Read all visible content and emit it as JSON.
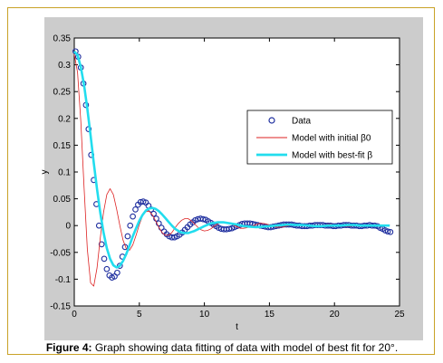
{
  "caption": {
    "label": "Figure 4:",
    "text": " Graph showing data fitting of data with model of best fit for 20°."
  },
  "chart_data": {
    "type": "line",
    "xlabel": "t",
    "ylabel": "y",
    "xlim": [
      0,
      25
    ],
    "ylim": [
      -0.15,
      0.35
    ],
    "xticks": [
      "0",
      "5",
      "10",
      "15",
      "20",
      "25"
    ],
    "yticks": [
      "-0.15",
      "-0.1",
      "-0.05",
      "0",
      "0.05",
      "0.1",
      "0.15",
      "0.2",
      "0.25",
      "0.3",
      "0.35"
    ],
    "legend_position": "center-right",
    "grid": false,
    "series": [
      {
        "name": "Data",
        "style": "markers",
        "color": "#1f2f9f",
        "x": [
          0.1,
          0.3,
          0.5,
          0.7,
          0.9,
          1.1,
          1.3,
          1.5,
          1.7,
          1.9,
          2.1,
          2.3,
          2.5,
          2.7,
          2.9,
          3.1,
          3.3,
          3.5,
          3.7,
          3.9,
          4.1,
          4.3,
          4.5,
          4.7,
          4.9,
          5.1,
          5.3,
          5.5,
          5.7,
          5.9,
          6.1,
          6.3,
          6.5,
          6.7,
          6.9,
          7.1,
          7.3,
          7.5,
          7.7,
          7.9,
          8.1,
          8.3,
          8.5,
          8.7,
          8.9,
          9.1,
          9.3,
          9.5,
          9.7,
          9.9,
          10.1,
          10.3,
          10.5,
          10.7,
          10.9,
          11.1,
          11.3,
          11.5,
          11.7,
          11.9,
          12.1,
          12.3,
          12.5,
          12.7,
          12.9,
          13.1,
          13.3,
          13.5,
          13.7,
          13.9,
          14.1,
          14.3,
          14.5,
          14.7,
          14.9,
          15.1,
          15.3,
          15.5,
          15.7,
          15.9,
          16.1,
          16.3,
          16.5,
          16.7,
          16.9,
          17.1,
          17.3,
          17.5,
          17.7,
          17.9,
          18.1,
          18.3,
          18.5,
          18.7,
          18.9,
          19.1,
          19.3,
          19.5,
          19.7,
          19.9,
          20.1,
          20.3,
          20.5,
          20.7,
          20.9,
          21.1,
          21.3,
          21.5,
          21.7,
          21.9,
          22.1,
          22.3,
          22.5,
          22.7,
          22.9,
          23.1,
          23.3,
          23.5,
          23.7,
          23.9,
          24.1,
          24.3
        ],
        "y": [
          0.325,
          0.315,
          0.295,
          0.265,
          0.225,
          0.18,
          0.132,
          0.085,
          0.04,
          0.0,
          -0.035,
          -0.062,
          -0.081,
          -0.093,
          -0.097,
          -0.095,
          -0.088,
          -0.075,
          -0.058,
          -0.04,
          -0.02,
          0.0,
          0.017,
          0.03,
          0.039,
          0.044,
          0.045,
          0.043,
          0.037,
          0.03,
          0.022,
          0.013,
          0.004,
          -0.004,
          -0.011,
          -0.016,
          -0.02,
          -0.022,
          -0.022,
          -0.02,
          -0.017,
          -0.013,
          -0.008,
          -0.003,
          0.002,
          0.006,
          0.01,
          0.012,
          0.013,
          0.012,
          0.011,
          0.008,
          0.005,
          0.002,
          -0.001,
          -0.004,
          -0.006,
          -0.007,
          -0.007,
          -0.006,
          -0.005,
          -0.003,
          -0.001,
          0.001,
          0.003,
          0.004,
          0.004,
          0.004,
          0.003,
          0.002,
          0.001,
          0.0,
          -0.001,
          -0.002,
          -0.003,
          -0.003,
          -0.002,
          -0.001,
          0.0,
          0.001,
          0.002,
          0.002,
          0.002,
          0.002,
          0.001,
          0.0,
          0.0,
          -0.001,
          -0.001,
          -0.001,
          0.0,
          0.0,
          0.001,
          0.001,
          0.001,
          0.001,
          0.0,
          0.0,
          0.0,
          -0.001,
          -0.001,
          0.0,
          0.0,
          0.001,
          0.001,
          0.001,
          0.0,
          0.0,
          0.0,
          -0.001,
          -0.001,
          0.0,
          0.0,
          0.001,
          0.0,
          0.0,
          -0.001,
          -0.004,
          -0.006,
          -0.009,
          -0.011,
          -0.012
        ]
      },
      {
        "name": "Model with initial β0",
        "style": "line",
        "color": "#dd2222",
        "x": [
          0.0,
          0.25,
          0.5,
          0.75,
          1.0,
          1.25,
          1.5,
          1.75,
          2.0,
          2.25,
          2.5,
          2.75,
          3.0,
          3.25,
          3.5,
          3.75,
          4.0,
          4.25,
          4.5,
          4.75,
          5.0,
          5.25,
          5.5,
          5.75,
          6.0,
          6.25,
          6.5,
          6.75,
          7.0,
          7.25,
          7.5,
          7.75,
          8.0,
          8.25,
          8.5,
          8.75,
          9.0,
          9.25,
          9.5,
          9.75,
          10.0,
          10.25,
          10.5,
          10.75,
          11.0,
          11.25,
          11.5,
          11.75,
          12.0,
          12.25,
          12.5,
          12.75,
          13.0,
          13.25,
          13.5,
          13.75,
          14.0,
          14.25,
          14.5,
          14.75,
          15.0,
          15.25,
          15.5,
          15.75,
          16.0,
          16.25,
          16.5,
          16.75,
          17.0,
          17.25,
          17.5,
          17.75,
          18.0,
          18.25,
          18.5,
          18.75,
          19.0,
          19.25,
          19.5,
          19.75,
          20.0,
          20.25,
          20.5,
          20.75,
          21.0,
          21.25,
          21.5,
          21.75,
          22.0,
          22.25,
          22.5,
          22.75,
          23.0,
          23.25,
          23.5,
          23.75,
          24.0,
          24.25
        ],
        "y": [
          0.32,
          0.286,
          0.195,
          0.071,
          -0.044,
          -0.107,
          -0.113,
          -0.079,
          -0.023,
          0.025,
          0.058,
          0.069,
          0.058,
          0.031,
          0.0,
          -0.027,
          -0.043,
          -0.046,
          -0.036,
          -0.018,
          0.002,
          0.018,
          0.026,
          0.027,
          0.02,
          0.009,
          -0.003,
          -0.013,
          -0.018,
          -0.018,
          -0.013,
          -0.004,
          0.004,
          0.01,
          0.013,
          0.013,
          0.009,
          0.003,
          -0.003,
          -0.008,
          -0.01,
          -0.009,
          -0.006,
          -0.001,
          0.003,
          0.006,
          0.007,
          0.006,
          0.004,
          0.001,
          -0.002,
          -0.005,
          -0.005,
          -0.004,
          -0.002,
          0.0,
          0.002,
          0.004,
          0.004,
          0.003,
          0.001,
          -0.001,
          -0.003,
          -0.003,
          -0.003,
          -0.001,
          0.0,
          0.002,
          0.002,
          0.002,
          0.001,
          0.0,
          -0.001,
          -0.002,
          -0.002,
          -0.001,
          0.0,
          0.001,
          0.002,
          0.002,
          0.001,
          0.0,
          -0.001,
          -0.001,
          -0.001,
          -0.001,
          0.0,
          0.001,
          0.001,
          0.001,
          0.001,
          0.0,
          0.0,
          -0.001,
          -0.001,
          0.0,
          0.0,
          0.001
        ]
      },
      {
        "name": "Model with best-fit β",
        "style": "line",
        "color": "#22ddee",
        "x": [
          0.0,
          0.25,
          0.5,
          0.75,
          1.0,
          1.25,
          1.5,
          1.75,
          2.0,
          2.25,
          2.5,
          2.75,
          3.0,
          3.25,
          3.5,
          3.75,
          4.0,
          4.25,
          4.5,
          4.75,
          5.0,
          5.25,
          5.5,
          5.75,
          6.0,
          6.25,
          6.5,
          6.75,
          7.0,
          7.25,
          7.5,
          7.75,
          8.0,
          8.25,
          8.5,
          8.75,
          9.0,
          9.25,
          9.5,
          9.75,
          10.0,
          10.5,
          11.0,
          11.5,
          12.0,
          12.5,
          13.0,
          13.5,
          14.0,
          14.5,
          15.0,
          15.5,
          16.0,
          16.5,
          17.0,
          17.5,
          18.0,
          18.5,
          19.0,
          19.5,
          20.0,
          20.5,
          21.0,
          21.5,
          22.0,
          22.5,
          23.0,
          23.5,
          24.0,
          24.25
        ],
        "y": [
          0.325,
          0.318,
          0.296,
          0.262,
          0.218,
          0.168,
          0.117,
          0.068,
          0.024,
          -0.013,
          -0.042,
          -0.062,
          -0.074,
          -0.078,
          -0.075,
          -0.066,
          -0.053,
          -0.037,
          -0.02,
          -0.005,
          0.009,
          0.02,
          0.028,
          0.032,
          0.033,
          0.031,
          0.027,
          0.021,
          0.014,
          0.007,
          0.0,
          -0.006,
          -0.01,
          -0.013,
          -0.014,
          -0.014,
          -0.012,
          -0.01,
          -0.007,
          -0.004,
          -0.001,
          0.004,
          0.006,
          0.006,
          0.004,
          0.002,
          -0.001,
          -0.002,
          -0.003,
          -0.002,
          -0.001,
          0.0,
          0.001,
          0.002,
          0.001,
          0.001,
          0.0,
          -0.001,
          -0.001,
          0.0,
          0.0,
          0.0,
          0.001,
          0.001,
          0.0,
          0.0,
          0.0,
          0.0,
          0.0,
          0.0
        ]
      }
    ]
  }
}
